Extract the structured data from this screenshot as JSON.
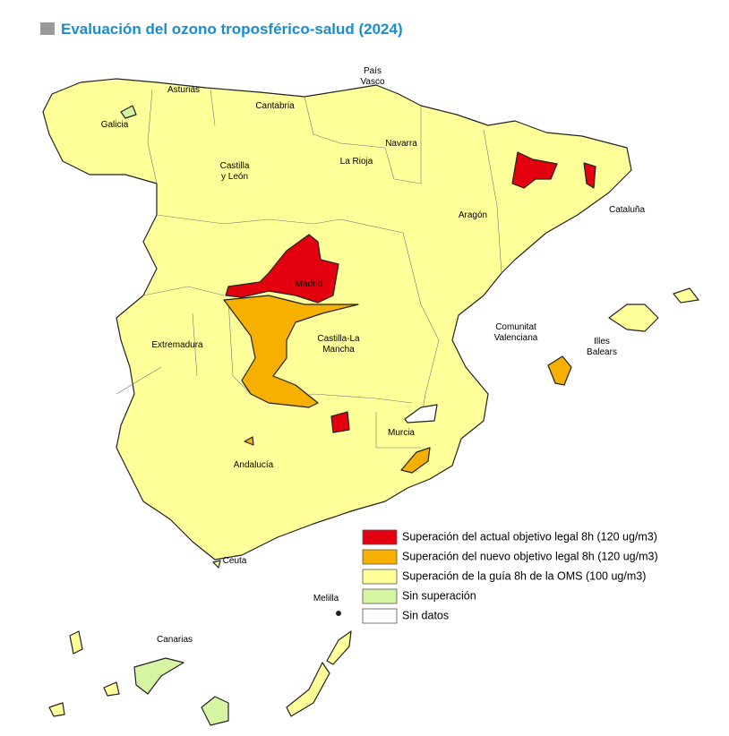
{
  "title": "Evaluación del ozono troposférico-salud (2024)",
  "regions": [
    {
      "label": [
        "País",
        "Vasco"
      ]
    },
    {
      "label": [
        "Asturias"
      ]
    },
    {
      "label": [
        "Cantabria"
      ]
    },
    {
      "label": [
        "Galicia"
      ]
    },
    {
      "label": [
        "Navarra"
      ]
    },
    {
      "label": [
        "La Rioja"
      ]
    },
    {
      "label": [
        "Castilla",
        "y León"
      ]
    },
    {
      "label": [
        "Aragón"
      ]
    },
    {
      "label": [
        "Cataluña"
      ]
    },
    {
      "label": [
        "Madrid"
      ]
    },
    {
      "label": [
        "Extremadura"
      ]
    },
    {
      "label": [
        "Castilla-La",
        "Mancha"
      ]
    },
    {
      "label": [
        "Comunitat",
        "Valenciana"
      ]
    },
    {
      "label": [
        "Illes",
        "Balears"
      ]
    },
    {
      "label": [
        "Murcia"
      ]
    },
    {
      "label": [
        "Andalucía"
      ]
    },
    {
      "label": [
        "Ceuta"
      ]
    },
    {
      "label": [
        "Melilla"
      ]
    },
    {
      "label": [
        "Canarias"
      ]
    }
  ],
  "legend": [
    {
      "label": "Superación del actual objetivo legal 8h (120 ug/m3)",
      "color": "#e3000f"
    },
    {
      "label": "Superación del nuevo objetivo legal 8h (120 ug/m3)",
      "color": "#f7b000"
    },
    {
      "label": "Superación de la guía 8h de la OMS (100 ug/m3)",
      "color": "#ffff99"
    },
    {
      "label": "Sin superación",
      "color": "#d6f5a3"
    },
    {
      "label": "Sin datos",
      "color": "#ffffff"
    }
  ]
}
